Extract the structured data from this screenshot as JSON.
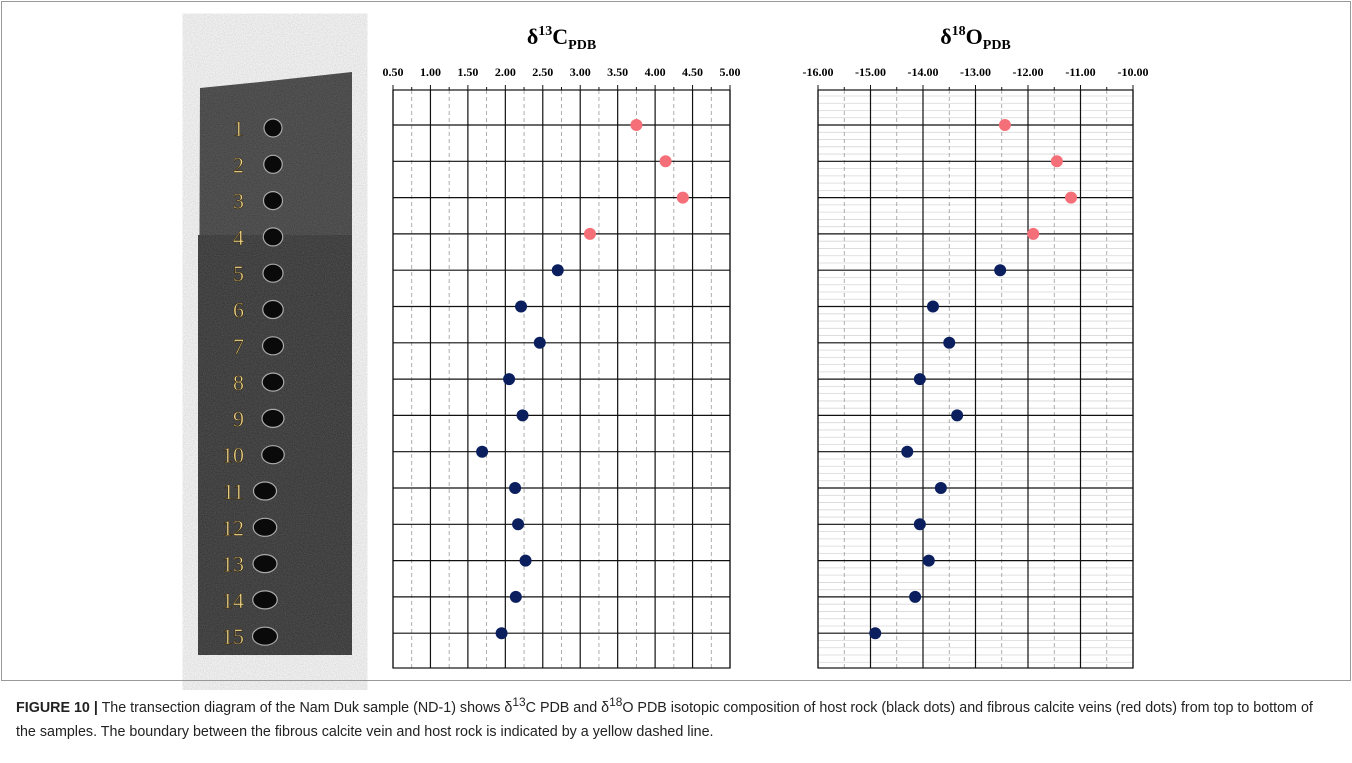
{
  "figure": {
    "sample_labels": [
      "1",
      "2",
      "3",
      "4",
      "5",
      "6",
      "7",
      "8",
      "9",
      "10",
      "11",
      "12",
      "13",
      "14",
      "15"
    ],
    "caption": {
      "label": "FIGURE 10 |",
      "segments": [
        "The transection diagram of the Nam Duk sample (ND-1) shows δ",
        "13",
        "C PDB and δ",
        "18",
        "O PDB isotopic composition of host rock (black dots) and fibrous calcite veins (red dots) from top to bottom of the samples. The boundary between the fibrous calcite vein and host rock is indicated by a yellow dashed line."
      ]
    }
  },
  "chart_data": [
    {
      "type": "dot",
      "title": {
        "symbol": "δ",
        "sup": "13",
        "element": "C",
        "sub": "PDB"
      },
      "xlim": [
        0.5,
        5.0
      ],
      "xticks": [
        {
          "value": 0.5,
          "label": "0.50"
        },
        {
          "value": 1.0,
          "label": "1.00"
        },
        {
          "value": 1.5,
          "label": "1.50"
        },
        {
          "value": 2.0,
          "label": "2.00"
        },
        {
          "value": 2.5,
          "label": "2.50"
        },
        {
          "value": 3.0,
          "label": "3.00"
        },
        {
          "value": 3.5,
          "label": "3.50"
        },
        {
          "value": 4.0,
          "label": "4.00"
        },
        {
          "value": 4.5,
          "label": "4.50"
        },
        {
          "value": 5.0,
          "label": "5.00"
        }
      ],
      "grid": true,
      "minor_hgrid": false,
      "series": [
        {
          "color": "#f56f78",
          "values": [
            3.75,
            4.14,
            4.37,
            3.13,
            null,
            null,
            null,
            null,
            null,
            null,
            null,
            null,
            null,
            null,
            null
          ]
        },
        {
          "color": "#0b1f5e",
          "values": [
            null,
            null,
            null,
            null,
            2.7,
            2.21,
            2.46,
            2.05,
            2.23,
            1.69,
            2.13,
            2.17,
            2.27,
            2.14,
            1.95
          ]
        }
      ]
    },
    {
      "type": "dot",
      "title": {
        "symbol": "δ",
        "sup": "18",
        "element": "O",
        "sub": "PDB"
      },
      "xlim": [
        -16,
        -10
      ],
      "xticks": [
        {
          "value": -16,
          "label": "-16.00"
        },
        {
          "value": -15,
          "label": "-15.00"
        },
        {
          "value": -14,
          "label": "-14.00"
        },
        {
          "value": -13,
          "label": "-13.00"
        },
        {
          "value": -12,
          "label": "-12.00"
        },
        {
          "value": -11,
          "label": "-11.00"
        },
        {
          "value": -10,
          "label": "-10.00"
        }
      ],
      "grid": true,
      "minor_hgrid": true,
      "series": [
        {
          "color": "#f56f78",
          "values": [
            -12.44,
            -11.45,
            -11.18,
            -11.9,
            null,
            null,
            null,
            null,
            null,
            null,
            null,
            null,
            null,
            null,
            null
          ]
        },
        {
          "color": "#0b1f5e",
          "values": [
            null,
            null,
            null,
            null,
            -12.53,
            -13.81,
            -13.5,
            -14.06,
            -13.35,
            -14.3,
            -13.66,
            -14.06,
            -13.89,
            -14.15,
            -14.91
          ]
        }
      ]
    }
  ]
}
